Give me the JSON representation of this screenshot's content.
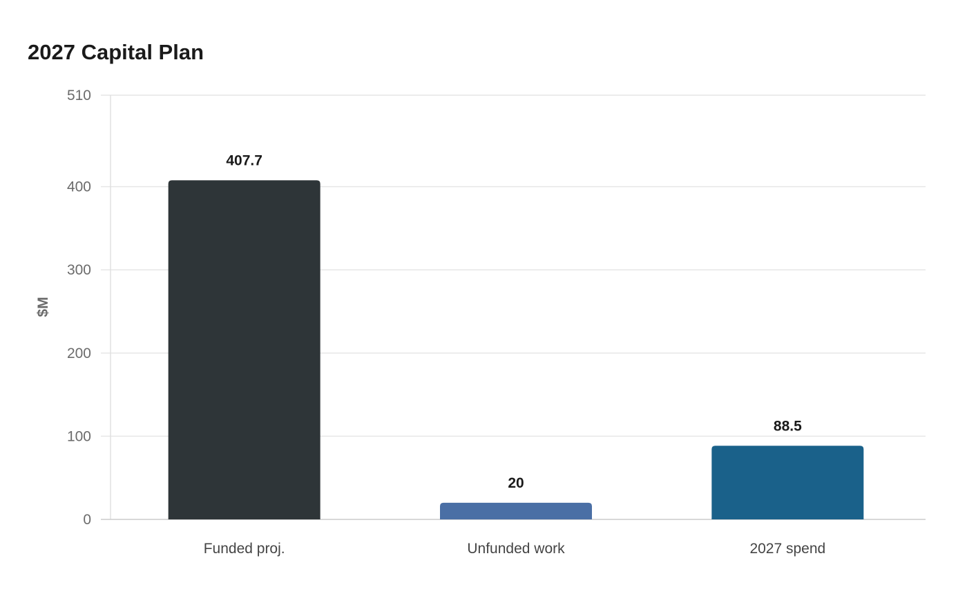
{
  "chart_data": {
    "type": "bar",
    "title": "2027 Capital Plan",
    "xlabel": "",
    "ylabel": "$M",
    "categories": [
      "Funded proj.",
      "Unfunded work",
      "2027 spend"
    ],
    "values": [
      407.7,
      20,
      88.5
    ],
    "value_labels": [
      "407.7",
      "20",
      "88.5"
    ],
    "ylim": [
      0,
      510
    ],
    "yticks": [
      0,
      100,
      200,
      300,
      400,
      510
    ],
    "colors": [
      "#2e3538",
      "#4a6fa5",
      "#1a618a"
    ],
    "grid": true,
    "legend": "none"
  }
}
